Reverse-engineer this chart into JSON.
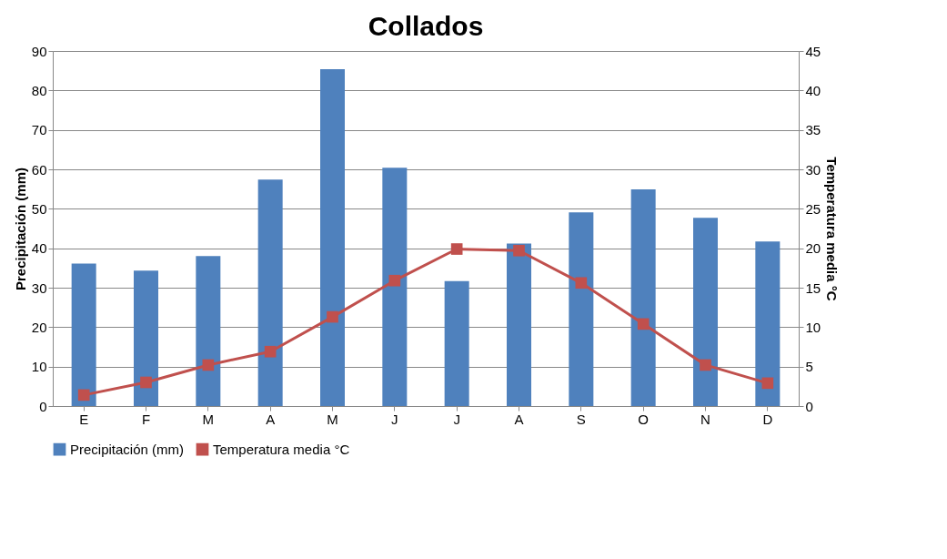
{
  "chart_data": {
    "type": "bar",
    "title": "Collados",
    "ylabel": "Precipitación (mm)",
    "y2label": "Temperatura media °C",
    "categories": [
      "E",
      "F",
      "M",
      "A",
      "M",
      "J",
      "J",
      "A",
      "S",
      "O",
      "N",
      "D"
    ],
    "series": [
      {
        "name": "Precipitación (mm)",
        "color": "#4f81bd",
        "values": [
          36.1,
          34.3,
          38,
          57.4,
          85.4,
          60.4,
          31.7,
          41.2,
          49.1,
          54.9,
          47.7,
          41.7
        ]
      },
      {
        "name": "Temperatura media °C",
        "type": "line",
        "axis": "y2",
        "color": "#c0504d",
        "marker": "square",
        "values": [
          1.4,
          3.0,
          5.2,
          6.9,
          11.3,
          15.9,
          19.9,
          19.7,
          15.6,
          10.4,
          5.2,
          2.9
        ]
      }
    ],
    "ylim": [
      0,
      90
    ],
    "yticks": [
      0,
      10,
      20,
      30,
      40,
      50,
      60,
      70,
      80,
      90
    ],
    "y2lim": [
      0,
      45
    ],
    "y2ticks": [
      0,
      5,
      10,
      15,
      20,
      25,
      30,
      35,
      40,
      45
    ],
    "grid": "y",
    "legend": "bottom"
  }
}
